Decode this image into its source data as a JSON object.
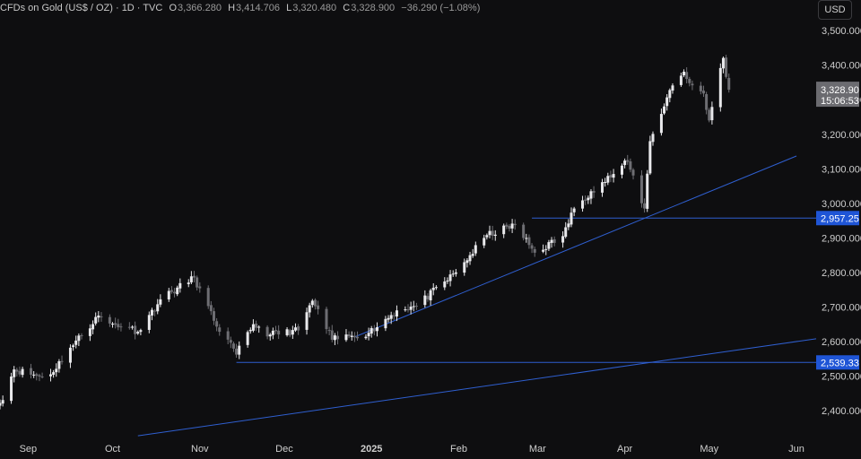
{
  "legend": {
    "symbol": "CFDs on Gold (US$ / OZ) · 1D · TVC",
    "open_label": "O",
    "open": "3,366.280",
    "high_label": "H",
    "high": "3,414.706",
    "low_label": "L",
    "low": "3,320.480",
    "close_label": "C",
    "close": "3,328.900",
    "change": "−36.290 (−1.08%)"
  },
  "currency_button": "USD",
  "price_tag": {
    "price": "3,328.90",
    "countdown": "15:06:53",
    "value": 3328.9
  },
  "colors": {
    "background": "#0e0e10",
    "candle_up": "#e9e9ec",
    "candle_down": "#6e6e73",
    "line": "#2f5fd0",
    "level_label_bg": "#1f55d6",
    "price_tag_bg": "#6b6b70"
  },
  "chart_data": {
    "type": "candlestick",
    "x_labels": [
      "Sep",
      "Oct",
      "Nov",
      "Dec",
      "2025",
      "Feb",
      "Mar",
      "Apr",
      "May",
      "Jun"
    ],
    "y_ticks": [
      "2,400.000",
      "2,500.000",
      "2,600.000",
      "2,700.000",
      "2,800.000",
      "2,900.000",
      "3,000.000",
      "3,100.000",
      "3,200.000",
      "3,300.000",
      "3,400.000",
      "3,500.000"
    ],
    "y_tick_values": [
      2400,
      2500,
      2600,
      2700,
      2800,
      2900,
      3000,
      3100,
      3200,
      3300,
      3400,
      3500
    ],
    "ylim": [
      2322,
      3542
    ],
    "start_date": "2024-08-22",
    "end_date": "2025-06-08",
    "levels": [
      {
        "label": "2,957.25",
        "value": 2957.25,
        "from": "2025-02-27"
      },
      {
        "label": "2,539.33",
        "value": 2539.33,
        "from": "2024-11-14"
      }
    ],
    "trendlines": [
      {
        "from": [
          "2024-12-26",
          2613
        ],
        "to": [
          "2025-06-01",
          3137
        ]
      },
      {
        "from": [
          "2024-10-10",
          2327
        ],
        "to": [
          "2025-06-08",
          2608
        ]
      }
    ],
    "anchors": [
      [
        "2024-08-22",
        2422
      ],
      [
        "2024-08-27",
        2519
      ],
      [
        "2024-09-06",
        2497
      ],
      [
        "2024-09-09",
        2505
      ],
      [
        "2024-09-16",
        2582
      ],
      [
        "2024-09-26",
        2675
      ],
      [
        "2024-09-30",
        2652
      ],
      [
        "2024-10-07",
        2640
      ],
      [
        "2024-10-10",
        2628
      ],
      [
        "2024-10-18",
        2722
      ],
      [
        "2024-10-30",
        2785
      ],
      [
        "2024-11-06",
        2660
      ],
      [
        "2024-11-14",
        2562
      ],
      [
        "2024-11-20",
        2650
      ],
      [
        "2024-11-26",
        2620
      ],
      [
        "2024-12-06",
        2632
      ],
      [
        "2024-12-11",
        2718
      ],
      [
        "2024-12-18",
        2605
      ],
      [
        "2024-12-24",
        2615
      ],
      [
        "2024-12-31",
        2625
      ],
      [
        "2025-01-10",
        2690
      ],
      [
        "2025-01-17",
        2703
      ],
      [
        "2025-01-31",
        2800
      ],
      [
        "2025-02-11",
        2908
      ],
      [
        "2025-02-21",
        2937
      ],
      [
        "2025-02-28",
        2857
      ],
      [
        "2025-03-10",
        2905
      ],
      [
        "2025-03-14",
        2985
      ],
      [
        "2025-03-20",
        3035
      ],
      [
        "2025-03-28",
        3085
      ],
      [
        "2025-04-02",
        3120
      ],
      [
        "2025-04-08",
        2985
      ],
      [
        "2025-04-10",
        3180
      ],
      [
        "2025-04-17",
        3328
      ],
      [
        "2025-04-22",
        3381
      ],
      [
        "2025-04-24",
        3348
      ],
      [
        "2025-04-29",
        3318
      ],
      [
        "2025-05-01",
        3240
      ],
      [
        "2025-05-06",
        3421
      ],
      [
        "2025-05-07",
        3366
      ],
      [
        "2025-05-08",
        3328.9
      ]
    ]
  }
}
